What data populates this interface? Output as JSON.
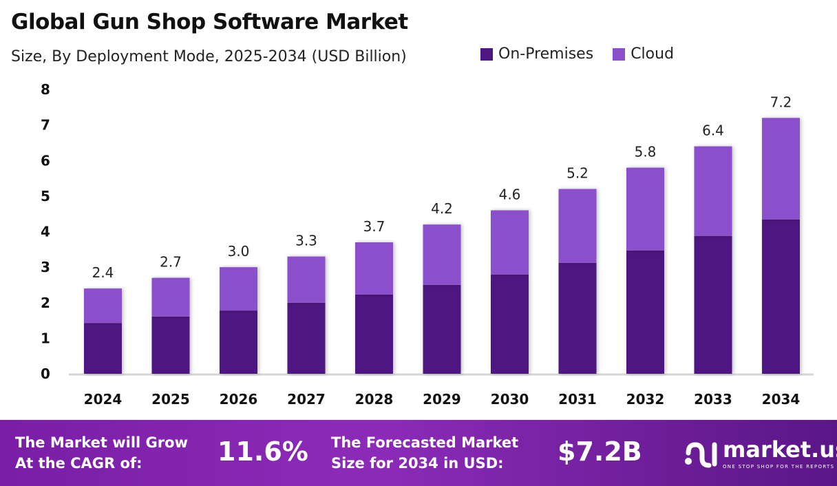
{
  "chart_data": {
    "type": "stacked-bar",
    "title": "Global Gun Shop Software Market",
    "subtitle": "Size, By Deployment Mode, 2025-2034 (USD Billion)",
    "categories": [
      "2024",
      "2025",
      "2026",
      "2027",
      "2028",
      "2029",
      "2030",
      "2031",
      "2032",
      "2033",
      "2034"
    ],
    "series": [
      {
        "name": "On-Premises",
        "color": "#4e1680",
        "values": [
          1.43,
          1.61,
          1.78,
          2.0,
          2.23,
          2.5,
          2.79,
          3.12,
          3.47,
          3.88,
          4.34
        ]
      },
      {
        "name": "Cloud",
        "color": "#8b4fcb",
        "values": [
          0.97,
          1.09,
          1.22,
          1.3,
          1.47,
          1.7,
          1.81,
          2.08,
          2.33,
          2.52,
          2.86
        ]
      }
    ],
    "totals": [
      "2.4",
      "2.7",
      "3.0",
      "3.3",
      "3.7",
      "4.2",
      "4.6",
      "5.2",
      "5.8",
      "6.4",
      "7.2"
    ],
    "yticks": [
      "0",
      "1",
      "2",
      "3",
      "4",
      "5",
      "6",
      "7",
      "8"
    ],
    "ylim": [
      0,
      8
    ],
    "grid": false,
    "legend_position": "top-right"
  },
  "footer": {
    "cagr_label_1": "The Market will Grow",
    "cagr_label_2": "At the CAGR of:",
    "cagr_value": "11.6%",
    "forecast_label_1": "The Forecasted Market",
    "forecast_label_2": "Size for 2034 in USD:",
    "forecast_value": "$7.2B",
    "logo_name": "market.us",
    "logo_tagline": "ONE STOP SHOP FOR THE REPORTS"
  }
}
